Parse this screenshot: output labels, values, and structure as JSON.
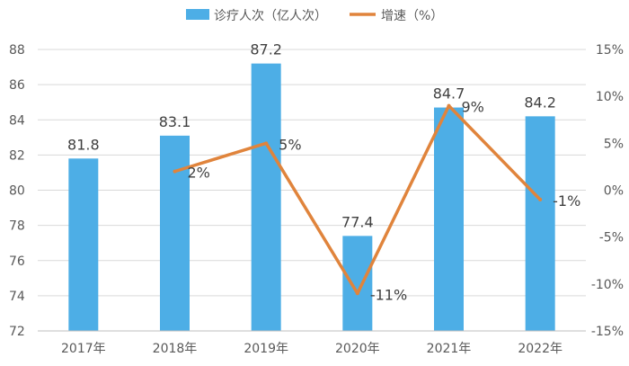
{
  "chart_data": {
    "type": "bar",
    "categories": [
      "2017年",
      "2018年",
      "2019年",
      "2020年",
      "2021年",
      "2022年"
    ],
    "series": [
      {
        "name": "诊疗人次（亿人次）",
        "type": "bar",
        "axis": "left",
        "color": "#4daee6",
        "values": [
          81.8,
          83.1,
          87.2,
          77.4,
          84.7,
          84.2
        ],
        "labels": [
          "81.8",
          "83.1",
          "87.2",
          "77.4",
          "84.7",
          "84.2"
        ]
      },
      {
        "name": "增速（%）",
        "type": "line",
        "axis": "right",
        "color": "#e0843c",
        "values": [
          null,
          2,
          5,
          -11,
          9,
          -1
        ],
        "labels": [
          "",
          "2%",
          "5%",
          "-11%",
          "9%",
          "-1%"
        ]
      }
    ],
    "y_left": {
      "min": 72,
      "max": 88,
      "ticks": [
        "72",
        "74",
        "76",
        "78",
        "80",
        "82",
        "84",
        "86",
        "88"
      ]
    },
    "y_right": {
      "min": -15,
      "max": 15,
      "ticks": [
        "-15%",
        "-10%",
        "-5%",
        "0%",
        "5%",
        "10%",
        "15%"
      ]
    },
    "grid": true,
    "legend_position": "top-center"
  }
}
